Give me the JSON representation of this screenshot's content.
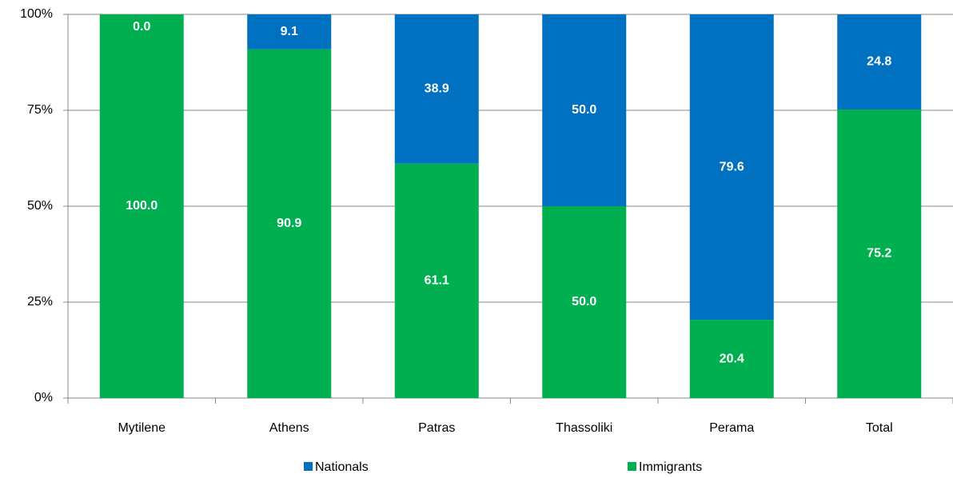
{
  "chart_data": {
    "type": "stacked_bar",
    "categories": [
      "Mytilene",
      "Athens",
      "Patras",
      "Thassoliki",
      "Perama",
      "Total"
    ],
    "series": [
      {
        "name": "Nationals",
        "color": "#0070c0",
        "values": [
          0,
          9.1,
          38.9,
          50,
          79.6,
          24.8
        ],
        "value_labels": [
          "0.0",
          "9.1",
          "38.9",
          "50.0",
          "79.6",
          "24.8"
        ]
      },
      {
        "name": "Immigrants",
        "color": "#00b050",
        "values": [
          100,
          90.9,
          61.1,
          50,
          20.4,
          75.2
        ],
        "value_labels": [
          "100.0",
          "90.9",
          "61.1",
          "50.0",
          "20.4",
          "75.2"
        ]
      }
    ],
    "ylim": [
      0,
      100
    ],
    "yticks": [
      {
        "value": 0,
        "label": "0%"
      },
      {
        "value": 25,
        "label": "25%"
      },
      {
        "value": 50,
        "label": "50%"
      },
      {
        "value": 75,
        "label": "75%"
      },
      {
        "value": 100,
        "label": "100%"
      }
    ],
    "grid": true,
    "legend": "bottom"
  }
}
